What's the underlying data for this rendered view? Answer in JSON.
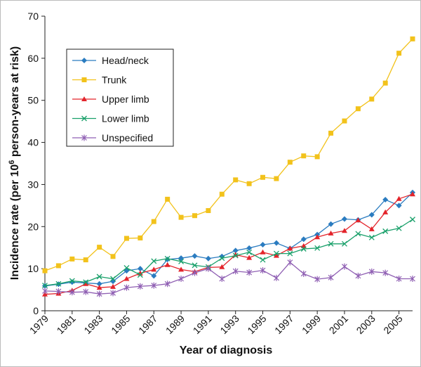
{
  "chart_data": {
    "type": "line",
    "x_label": "Year of diagnosis",
    "y_label": [
      "Incidence rate (per 10",
      "6",
      " person-years at risk)"
    ],
    "x": [
      1979,
      1980,
      1981,
      1982,
      1983,
      1984,
      1985,
      1986,
      1987,
      1988,
      1989,
      1990,
      1991,
      1992,
      1993,
      1994,
      1995,
      1996,
      1997,
      1998,
      1999,
      2000,
      2001,
      2002,
      2003,
      2004,
      2005,
      2006
    ],
    "xlim": [
      1979,
      2006
    ],
    "xticks": [
      1979,
      1981,
      1983,
      1985,
      1987,
      1989,
      1991,
      1993,
      1995,
      1997,
      1999,
      2001,
      2003,
      2005
    ],
    "ylim": [
      0,
      70
    ],
    "yticks": [
      0,
      10,
      20,
      30,
      40,
      50,
      60,
      70
    ],
    "legend": "upper left",
    "series": [
      {
        "name": "Head/neck",
        "color": "#2b7cc0",
        "marker": "diamond",
        "values": [
          5.9,
          6.3,
          6.8,
          6.6,
          6.4,
          7.0,
          9.5,
          10.0,
          8.3,
          12.2,
          12.5,
          13.0,
          12.4,
          12.9,
          14.3,
          14.9,
          15.7,
          16.1,
          14.8,
          17.0,
          18.1,
          20.6,
          21.8,
          21.6,
          22.8,
          26.4,
          25.0,
          28.1
        ]
      },
      {
        "name": "Trunk",
        "color": "#f2c21b",
        "marker": "square",
        "values": [
          9.5,
          10.7,
          12.3,
          12.1,
          15.1,
          12.9,
          17.2,
          17.3,
          21.2,
          26.5,
          22.2,
          22.6,
          23.8,
          27.7,
          31.1,
          30.2,
          31.7,
          31.4,
          35.3,
          36.8,
          36.6,
          42.2,
          45.1,
          48.0,
          50.3,
          54.1,
          61.2,
          64.6
        ]
      },
      {
        "name": "Upper limb",
        "color": "#e3242b",
        "marker": "triangle",
        "values": [
          3.9,
          4.1,
          4.8,
          6.4,
          5.5,
          5.7,
          7.6,
          8.9,
          9.8,
          10.9,
          9.8,
          9.3,
          10.3,
          10.4,
          13.3,
          12.6,
          13.9,
          13.1,
          14.8,
          15.4,
          17.5,
          18.4,
          19.0,
          21.5,
          19.4,
          23.4,
          26.6,
          27.7
        ]
      },
      {
        "name": "Lower limb",
        "color": "#19a06a",
        "marker": "x",
        "values": [
          6.0,
          6.4,
          7.1,
          6.8,
          8.1,
          7.6,
          10.2,
          8.5,
          11.8,
          12.4,
          11.7,
          10.8,
          10.4,
          12.5,
          13.1,
          13.9,
          12.1,
          13.6,
          13.6,
          14.7,
          14.9,
          15.9,
          15.9,
          18.3,
          17.4,
          18.9,
          19.6,
          21.7
        ]
      },
      {
        "name": "Unspecified",
        "color": "#8f5fb3",
        "marker": "star",
        "values": [
          4.7,
          4.6,
          4.4,
          4.5,
          4.0,
          4.2,
          5.5,
          5.8,
          6.0,
          6.4,
          7.6,
          9.0,
          10.0,
          7.6,
          9.4,
          9.1,
          9.6,
          7.8,
          11.5,
          8.8,
          7.5,
          7.9,
          10.5,
          8.3,
          9.3,
          9.0,
          7.6,
          7.6
        ]
      }
    ]
  }
}
